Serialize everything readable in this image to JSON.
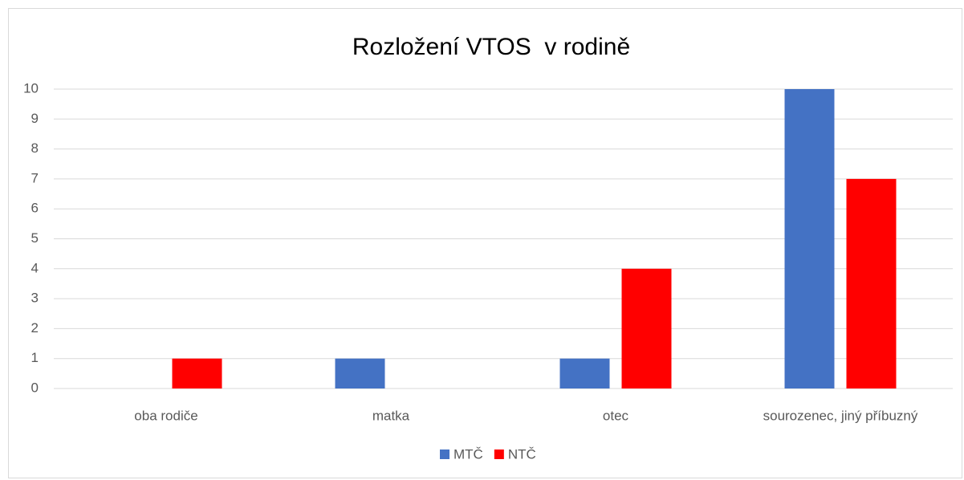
{
  "chart_data": {
    "type": "bar",
    "title": "Rozložení VTOS  v rodině",
    "categories": [
      "oba rodiče",
      "matka",
      "otec",
      "sourozenec, jiný příbuzný"
    ],
    "series": [
      {
        "name": "MTČ",
        "color": "#4472c4",
        "values": [
          0,
          1,
          1,
          10
        ]
      },
      {
        "name": "NTČ",
        "color": "#ff0000",
        "values": [
          1,
          0,
          4,
          7
        ]
      }
    ],
    "ylim": [
      0,
      10
    ],
    "yticks": [
      0,
      1,
      2,
      3,
      4,
      5,
      6,
      7,
      8,
      9,
      10
    ],
    "grid": true,
    "legend": "bottom"
  }
}
